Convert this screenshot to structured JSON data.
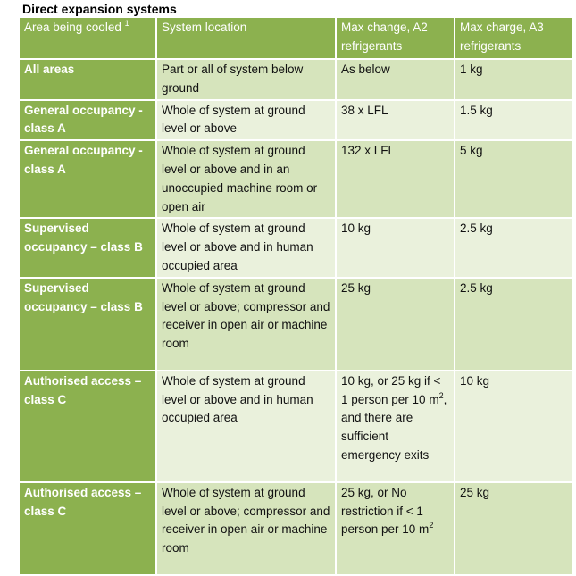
{
  "title": "Direct expansion systems",
  "headers": {
    "area": "Area being cooled",
    "area_sup": "1",
    "location": "System location",
    "a2": "Max change, A2 refrigerants",
    "a3": "Max charge, A3 refrigerants"
  },
  "rows": [
    {
      "area": "All areas",
      "location": "Part or all of system below ground",
      "a2": "As below",
      "a3": "1 kg"
    },
    {
      "area": "General occupancy - class A",
      "location": "Whole of system at ground level or above",
      "a2": "38 x LFL",
      "a3": "1.5 kg"
    },
    {
      "area": "General occupancy - class A",
      "location": "Whole of system at ground level or above and in an unoccupied machine room or open air",
      "a2": "132 x LFL",
      "a3": "5 kg"
    },
    {
      "area": "Supervised occupancy – class B",
      "location": "Whole of system at ground level or above and in human occupied area",
      "a2": "10 kg",
      "a3": "2.5 kg"
    },
    {
      "area": "Supervised occupancy – class B",
      "location": "Whole of system at ground level or above; compressor and receiver in open air or machine room",
      "a2": "25 kg",
      "a3": "2.5 kg"
    },
    {
      "area": "Authorised access – class C",
      "location": "Whole of system at ground level or above and in human occupied area",
      "a2_pre": "10 kg, or 25 kg if < 1 person per 10 m",
      "a2_sup": "2",
      "a2_post": ", and there are sufficient emergency exits",
      "a3": "10 kg"
    },
    {
      "area": "Authorised access – class C",
      "location": "Whole of system at ground level or above; compressor and receiver in open air or machine room",
      "a2_pre": "25 kg, or No restriction if < 1 person per 10 m",
      "a2_sup": "2",
      "a3": "25 kg"
    }
  ]
}
